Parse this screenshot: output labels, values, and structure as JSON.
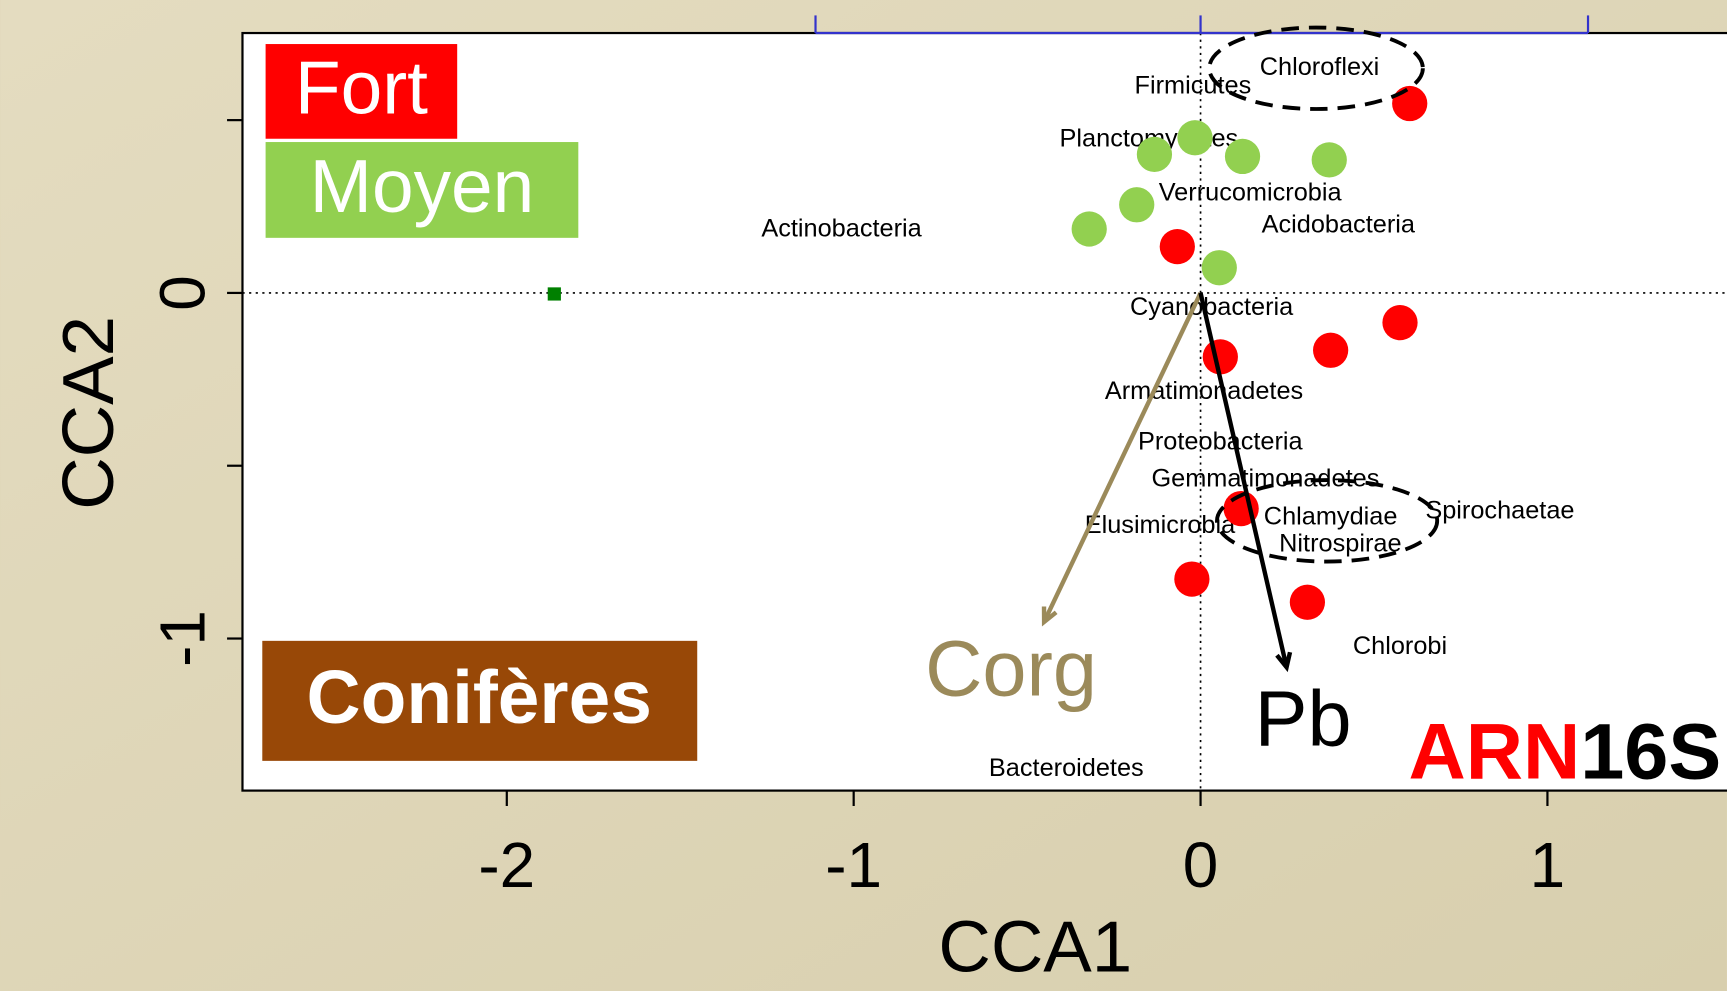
{
  "chart_data": {
    "type": "scatter",
    "xlabel": "CCA1",
    "ylabel": "CCA2",
    "xlim": [
      -2.762,
      1.517
    ],
    "ylim": [
      -1.44,
      0.752
    ],
    "xticks": [
      -2,
      -1,
      0,
      1
    ],
    "yticks": [
      -1,
      0
    ],
    "yminor_ticks": [
      -0.5,
      0.5
    ],
    "x2ticks": [
      -1.11,
      0,
      1.117
    ],
    "x2color": "#3333cc",
    "series": [
      {
        "name": "Fort",
        "color": "#ff0000",
        "x": [
          0.603,
          -0.067,
          0.575,
          0.057,
          0.375,
          0.117,
          -0.025,
          0.308
        ],
        "values": [
          0.548,
          0.134,
          -0.086,
          -0.185,
          -0.166,
          -0.624,
          -0.828,
          -0.895
        ]
      },
      {
        "name": "Moyen",
        "color": "#92d050",
        "x": [
          -0.016,
          -0.133,
          0.121,
          0.371,
          -0.184,
          -0.321,
          0.054
        ],
        "values": [
          0.449,
          0.401,
          0.395,
          0.385,
          0.255,
          0.185,
          0.073
        ]
      }
    ],
    "extra_points": {
      "color": "#008000",
      "x": [
        -1.863
      ],
      "values": [
        -0.003
      ]
    },
    "group_label": {
      "text": "Conifères",
      "color": "#984807"
    },
    "species": [
      {
        "label": "Chloroflexi",
        "x": 0.343,
        "y": 0.65
      },
      {
        "label": "Firmicutes",
        "x": -0.022,
        "y": 0.596
      },
      {
        "label": "Planctomycetes",
        "x": -0.149,
        "y": 0.443
      },
      {
        "label": "Verrucomicrobia",
        "x": 0.143,
        "y": 0.287
      },
      {
        "label": "Actinobacteria",
        "x": -1.035,
        "y": 0.182
      },
      {
        "label": "Acidobacteria",
        "x": 0.397,
        "y": 0.194
      },
      {
        "label": "Cyanobacteria",
        "x": 0.032,
        "y": -0.045
      },
      {
        "label": "Armatimonadetes",
        "x": 0.01,
        "y": -0.287
      },
      {
        "label": "Proteobacteria",
        "x": 0.057,
        "y": -0.433
      },
      {
        "label": "Gemmatimonadetes",
        "x": 0.187,
        "y": -0.541
      },
      {
        "label": "Chlamydiae",
        "x": 0.375,
        "y": -0.65
      },
      {
        "label": "Spirochaetae",
        "x": 0.863,
        "y": -0.634
      },
      {
        "label": "Elusimicrobia",
        "x": -0.117,
        "y": -0.675
      },
      {
        "label": "Nitrospirae",
        "x": 0.403,
        "y": -0.729
      },
      {
        "label": "Chlorobi",
        "x": 0.575,
        "y": -1.025
      },
      {
        "label": "Bacteroidetes",
        "x": -0.387,
        "y": -1.379
      }
    ],
    "vectors": [
      {
        "label": "Corg",
        "color": "#9b8a5a",
        "x": -0.451,
        "y": -0.952
      },
      {
        "label": "Pb",
        "color": "#000000",
        "x": 0.248,
        "y": -1.083
      }
    ],
    "tag": {
      "part1": "ARN",
      "part1_color": "#ff0000",
      "part2": "16S",
      "part2_color": "#000000"
    }
  }
}
